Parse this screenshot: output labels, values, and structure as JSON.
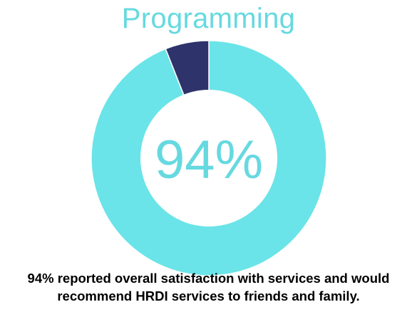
{
  "chart_data": {
    "type": "pie",
    "style": "donut",
    "title": "Programming",
    "center_label": "94%",
    "slices": [
      {
        "label": "",
        "value": 94,
        "color": "#6ae4e8"
      },
      {
        "label": "",
        "value": 6,
        "color": "#2e336b"
      }
    ],
    "caption": [
      "94% reported overall satisfaction with services and would",
      "recommend HRDI services to friends and family."
    ]
  }
}
